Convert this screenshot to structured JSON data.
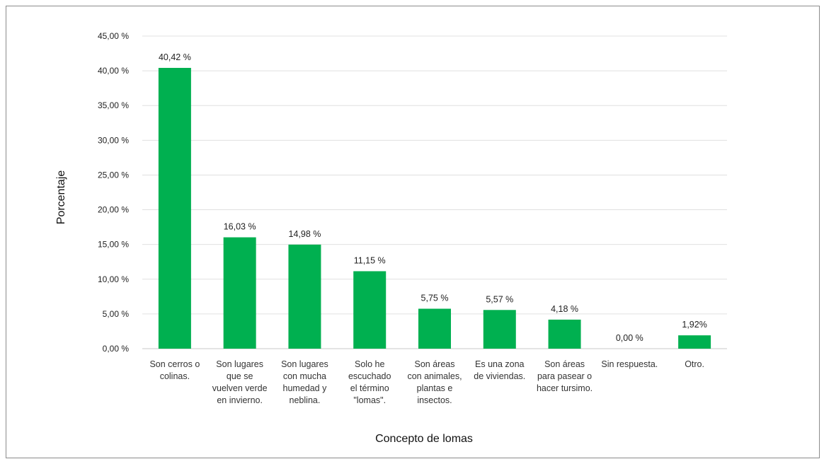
{
  "chart_data": {
    "type": "bar",
    "title": "",
    "xlabel": "Concepto de lomas",
    "ylabel": "Porcentaje",
    "ylim": [
      0,
      45
    ],
    "yticks": [
      0,
      5,
      10,
      15,
      20,
      25,
      30,
      35,
      40,
      45
    ],
    "ytick_labels": [
      "0,00 %",
      "5,00 %",
      "10,00 %",
      "15,00 %",
      "20,00 %",
      "25,00 %",
      "30,00 %",
      "35,00 %",
      "40,00 %",
      "45,00 %"
    ],
    "categories": [
      [
        "Son cerros o",
        "colinas."
      ],
      [
        "Son lugares",
        "que se",
        "vuelven verde",
        "en invierno."
      ],
      [
        "Son lugares",
        "con mucha",
        "humedad y",
        "neblina."
      ],
      [
        "Solo he",
        "escuchado",
        "el término",
        "\"lomas\"."
      ],
      [
        "Son áreas",
        "con animales,",
        "plantas e",
        "insectos."
      ],
      [
        "Es una zona",
        "de viviendas."
      ],
      [
        "Son áreas",
        "para pasear o",
        "hacer tursimo."
      ],
      [
        "Sin respuesta."
      ],
      [
        "Otro."
      ]
    ],
    "values": [
      40.42,
      16.03,
      14.98,
      11.15,
      5.75,
      5.57,
      4.18,
      0.0,
      1.92
    ],
    "data_labels": [
      "40,42 %",
      "16,03 %",
      "14,98 %",
      "11,15 %",
      "5,75 %",
      "5,57 %",
      "4,18 %",
      "0,00 %",
      "1,92%"
    ],
    "bar_color": "#00b050",
    "grid": true,
    "legend": "none"
  }
}
